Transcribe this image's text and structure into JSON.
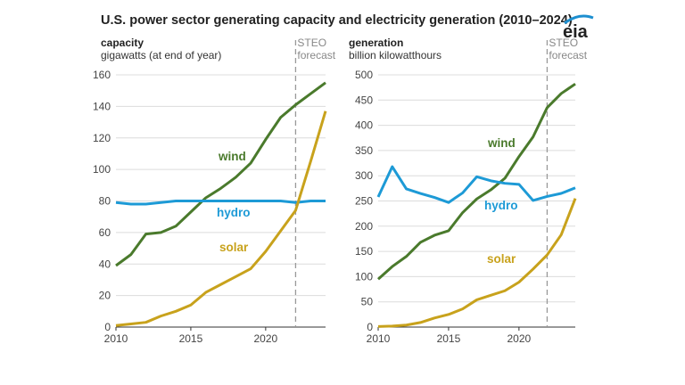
{
  "title": "U.S. power sector generating capacity and electricity generation (2010–2024)",
  "logo": "eia",
  "chart_data": [
    {
      "type": "line",
      "ylabel": "capacity",
      "yunit": "gigawatts (at end of year)",
      "forecast_label": [
        "STEO",
        "forecast"
      ],
      "forecast_start": 2022,
      "xlim": [
        2010,
        2024
      ],
      "ylim": [
        0,
        160
      ],
      "xticks": [
        2010,
        2015,
        2020
      ],
      "yticks": [
        0,
        20,
        40,
        60,
        80,
        100,
        120,
        140,
        160
      ],
      "grid": true,
      "x": [
        2010,
        2011,
        2012,
        2013,
        2014,
        2015,
        2016,
        2017,
        2018,
        2019,
        2020,
        2021,
        2022,
        2023,
        2024
      ],
      "series": [
        {
          "name": "wind",
          "color": "#4a7a2c",
          "values": [
            39,
            46,
            59,
            60,
            64,
            73,
            82,
            88,
            95,
            104,
            119,
            133,
            141,
            148,
            155
          ]
        },
        {
          "name": "hydro",
          "color": "#1d9ad6",
          "values": [
            79,
            78,
            78,
            79,
            80,
            80,
            80,
            80,
            80,
            80,
            80,
            80,
            79,
            80,
            80
          ]
        },
        {
          "name": "solar",
          "color": "#c8a21c",
          "values": [
            1,
            2,
            3,
            7,
            10,
            14,
            22,
            27,
            32,
            37,
            48,
            61,
            74,
            105,
            137
          ]
        }
      ]
    },
    {
      "type": "line",
      "ylabel": "generation",
      "yunit": "billion kilowatthours",
      "forecast_label": [
        "STEO",
        "forecast"
      ],
      "forecast_start": 2022,
      "xlim": [
        2010,
        2024
      ],
      "ylim": [
        0,
        500
      ],
      "xticks": [
        2010,
        2015,
        2020
      ],
      "yticks": [
        0,
        50,
        100,
        150,
        200,
        250,
        300,
        350,
        400,
        450,
        500
      ],
      "grid": true,
      "x": [
        2010,
        2011,
        2012,
        2013,
        2014,
        2015,
        2016,
        2017,
        2018,
        2019,
        2020,
        2021,
        2022,
        2023,
        2024
      ],
      "series": [
        {
          "name": "wind",
          "color": "#4a7a2c",
          "values": [
            95,
            120,
            140,
            168,
            182,
            191,
            227,
            254,
            272,
            295,
            338,
            377,
            435,
            463,
            482
          ]
        },
        {
          "name": "hydro",
          "color": "#1d9ad6",
          "values": [
            258,
            318,
            274,
            265,
            257,
            247,
            266,
            298,
            290,
            285,
            283,
            251,
            259,
            265,
            276
          ]
        },
        {
          "name": "solar",
          "color": "#c8a21c",
          "values": [
            1,
            2,
            4,
            9,
            18,
            25,
            36,
            54,
            63,
            72,
            89,
            115,
            143,
            183,
            255
          ]
        }
      ]
    }
  ]
}
